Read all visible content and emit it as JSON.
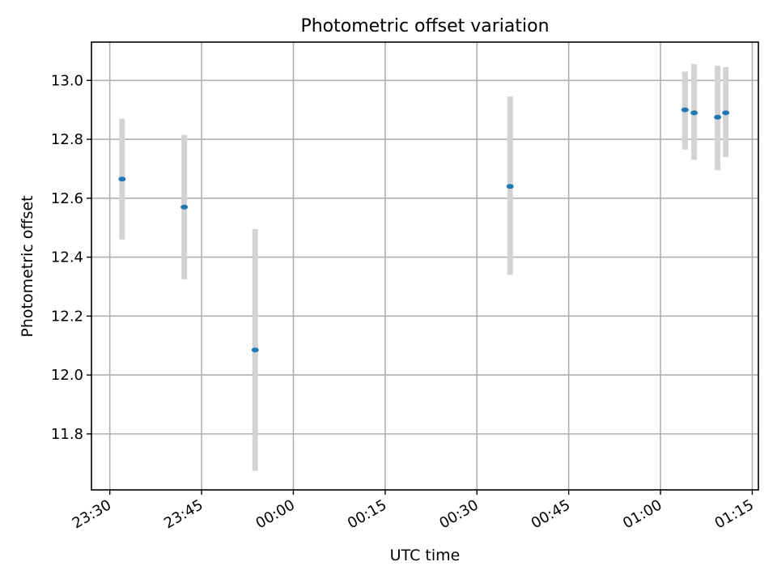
{
  "chart_data": {
    "type": "scatter",
    "title": "Photometric offset variation",
    "xlabel": "UTC time",
    "ylabel": "Photometric offset",
    "x_is_time": true,
    "xlim": [
      "2024-01-01T23:27:00",
      "2024-01-02T01:16:00"
    ],
    "ylim": [
      11.61,
      13.13
    ],
    "xticks": [
      {
        "t": "2024-01-01T23:30:00",
        "label": "23:30"
      },
      {
        "t": "2024-01-01T23:45:00",
        "label": "23:45"
      },
      {
        "t": "2024-01-02T00:00:00",
        "label": "00:00"
      },
      {
        "t": "2024-01-02T00:15:00",
        "label": "00:15"
      },
      {
        "t": "2024-01-02T00:30:00",
        "label": "00:30"
      },
      {
        "t": "2024-01-02T00:45:00",
        "label": "00:45"
      },
      {
        "t": "2024-01-02T01:00:00",
        "label": "01:00"
      },
      {
        "t": "2024-01-02T01:15:00",
        "label": "01:15"
      }
    ],
    "yticks": [
      11.8,
      12.0,
      12.2,
      12.4,
      12.6,
      12.8,
      13.0
    ],
    "ytick_labels": [
      "11.8",
      "12.0",
      "12.2",
      "12.4",
      "12.6",
      "12.8",
      "13.0"
    ],
    "grid": true,
    "marker_color": "#1f77b4",
    "errorbar_color": "#d3d3d3",
    "points": [
      {
        "t": "2024-01-01T23:32:00",
        "y": 12.665,
        "low": 12.46,
        "high": 12.87
      },
      {
        "t": "2024-01-01T23:42:10",
        "y": 12.57,
        "low": 12.325,
        "high": 12.815
      },
      {
        "t": "2024-01-01T23:53:45",
        "y": 12.085,
        "low": 11.675,
        "high": 12.495
      },
      {
        "t": "2024-01-02T00:35:25",
        "y": 12.64,
        "low": 12.34,
        "high": 12.945
      },
      {
        "t": "2024-01-02T01:04:00",
        "y": 12.9,
        "low": 12.765,
        "high": 13.03
      },
      {
        "t": "2024-01-02T01:05:30",
        "y": 12.89,
        "low": 12.73,
        "high": 13.055
      },
      {
        "t": "2024-01-02T01:09:20",
        "y": 12.875,
        "low": 12.695,
        "high": 13.05
      },
      {
        "t": "2024-01-02T01:10:40",
        "y": 12.89,
        "low": 12.74,
        "high": 13.045
      }
    ]
  }
}
